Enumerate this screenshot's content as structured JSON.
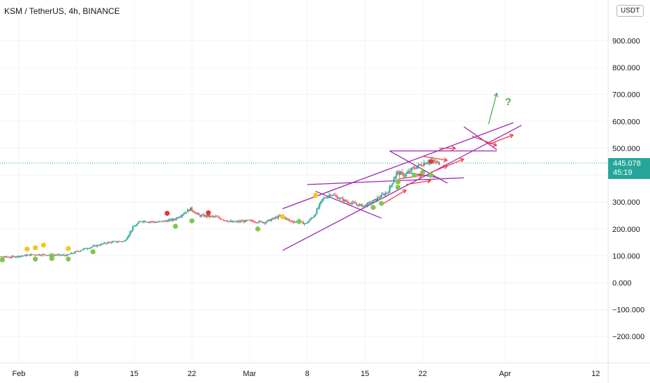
{
  "header": {
    "title": "KSM / TetherUS, 4h, BINANCE",
    "unit": "USDT"
  },
  "price_badge": {
    "price": "445.078",
    "countdown": "45:19"
  },
  "annotation": {
    "question": "?"
  },
  "colors": {
    "up": "#26a69a",
    "down": "#ef5350",
    "trendline": "#9c27b0",
    "arrow": "#f23645",
    "target_arrow": "#4caf50",
    "dot_yellow": "#f5c518",
    "dot_green": "#7cc84a",
    "dot_red": "#e53935"
  },
  "chart_data": {
    "type": "candlestick",
    "title": "KSM / TetherUS, 4h, BINANCE",
    "ylabel": "USDT",
    "ylim": [
      -300,
      1100
    ],
    "y_ticks": [
      -200,
      -100,
      0,
      100,
      200,
      300,
      400,
      500,
      600,
      700,
      800,
      900
    ],
    "y_tick_labels": [
      "−200.000",
      "−100.000",
      "0.000",
      "100.000",
      "200.000",
      "300.000",
      "400.000",
      "500.000",
      "600.000",
      "700.000",
      "800.000",
      "900.000"
    ],
    "x_range": [
      "2021-01-27",
      "2021-04-14"
    ],
    "x_ticks": [
      "2021-02-01",
      "2021-02-08",
      "2021-02-15",
      "2021-02-22",
      "2021-03-01",
      "2021-03-08",
      "2021-03-15",
      "2021-03-22",
      "2021-04-01",
      "2021-04-12"
    ],
    "x_tick_labels": [
      "Feb",
      "8",
      "15",
      "22",
      "Mar",
      "8",
      "15",
      "22",
      "Apr",
      "12"
    ],
    "last_price": 445.078,
    "grid": true,
    "price_path": [
      [
        "2021-01-27",
        100
      ],
      [
        "2021-01-31",
        95
      ],
      [
        "2021-02-03",
        105
      ],
      [
        "2021-02-07",
        102
      ],
      [
        "2021-02-09",
        125
      ],
      [
        "2021-02-12",
        150
      ],
      [
        "2021-02-14",
        155
      ],
      [
        "2021-02-15",
        205
      ],
      [
        "2021-02-16",
        230
      ],
      [
        "2021-02-18",
        225
      ],
      [
        "2021-02-20",
        235
      ],
      [
        "2021-02-22",
        275
      ],
      [
        "2021-02-23",
        250
      ],
      [
        "2021-02-25",
        245
      ],
      [
        "2021-02-27",
        225
      ],
      [
        "2021-03-01",
        230
      ],
      [
        "2021-03-03",
        225
      ],
      [
        "2021-03-05",
        250
      ],
      [
        "2021-03-06",
        230
      ],
      [
        "2021-03-08",
        220
      ],
      [
        "2021-03-09",
        250
      ],
      [
        "2021-03-10",
        310
      ],
      [
        "2021-03-11",
        330
      ],
      [
        "2021-03-13",
        300
      ],
      [
        "2021-03-15",
        285
      ],
      [
        "2021-03-16",
        300
      ],
      [
        "2021-03-18",
        340
      ],
      [
        "2021-03-19",
        410
      ],
      [
        "2021-03-20",
        400
      ],
      [
        "2021-03-21",
        425
      ],
      [
        "2021-03-22",
        440
      ],
      [
        "2021-03-23",
        455
      ],
      [
        "2021-03-24",
        445
      ]
    ],
    "markers": [
      {
        "date": "2021-01-30",
        "y": 85,
        "color": "green"
      },
      {
        "date": "2021-02-02",
        "y": 125,
        "color": "yellow"
      },
      {
        "date": "2021-02-03",
        "y": 130,
        "color": "yellow"
      },
      {
        "date": "2021-02-03",
        "y": 88,
        "color": "green"
      },
      {
        "date": "2021-02-04",
        "y": 140,
        "color": "yellow"
      },
      {
        "date": "2021-02-05",
        "y": 90,
        "color": "green"
      },
      {
        "date": "2021-02-05",
        "y": 100,
        "color": "green"
      },
      {
        "date": "2021-02-07",
        "y": 127,
        "color": "yellow"
      },
      {
        "date": "2021-02-07",
        "y": 88,
        "color": "green"
      },
      {
        "date": "2021-02-10",
        "y": 115,
        "color": "green"
      },
      {
        "date": "2021-02-19",
        "y": 258,
        "color": "red"
      },
      {
        "date": "2021-02-20",
        "y": 210,
        "color": "green"
      },
      {
        "date": "2021-02-22",
        "y": 230,
        "color": "green"
      },
      {
        "date": "2021-02-24",
        "y": 260,
        "color": "red"
      },
      {
        "date": "2021-03-02",
        "y": 200,
        "color": "green"
      },
      {
        "date": "2021-03-05",
        "y": 245,
        "color": "yellow"
      },
      {
        "date": "2021-03-07",
        "y": 228,
        "color": "green"
      },
      {
        "date": "2021-03-09",
        "y": 325,
        "color": "yellow"
      },
      {
        "date": "2021-03-16",
        "y": 280,
        "color": "green"
      },
      {
        "date": "2021-03-17",
        "y": 295,
        "color": "green"
      },
      {
        "date": "2021-03-19",
        "y": 355,
        "color": "green"
      },
      {
        "date": "2021-03-19",
        "y": 375,
        "color": "green"
      },
      {
        "date": "2021-03-21",
        "y": 400,
        "color": "green"
      },
      {
        "date": "2021-03-22",
        "y": 410,
        "color": "green"
      },
      {
        "date": "2021-03-23",
        "y": 450,
        "color": "red"
      },
      {
        "date": "2021-03-23",
        "y": 400,
        "color": "green"
      }
    ],
    "trendlines": [
      {
        "from": [
          "2021-03-05",
          120
        ],
        "to": [
          "2021-04-03",
          585
        ]
      },
      {
        "from": [
          "2021-03-05",
          275
        ],
        "to": [
          "2021-04-02",
          595
        ]
      },
      {
        "from": [
          "2021-03-08",
          365
        ],
        "to": [
          "2021-03-27",
          390
        ]
      },
      {
        "from": [
          "2021-03-09",
          340
        ],
        "to": [
          "2021-03-17",
          240
        ]
      },
      {
        "from": [
          "2021-03-18",
          490
        ],
        "to": [
          "2021-03-31",
          490
        ]
      },
      {
        "from": [
          "2021-03-18",
          490
        ],
        "to": [
          "2021-03-25",
          370
        ]
      },
      {
        "from": [
          "2021-03-20",
          410
        ],
        "to": [
          "2021-03-24",
          390
        ]
      },
      {
        "from": [
          "2021-03-27",
          580
        ],
        "to": [
          "2021-03-31",
          495
        ]
      }
    ],
    "arrows": [
      {
        "from": [
          "2021-03-17",
          290
        ],
        "to": [
          "2021-03-20",
          345
        ]
      },
      {
        "from": [
          "2021-03-19",
          385
        ],
        "to": [
          "2021-03-22",
          400
        ]
      },
      {
        "from": [
          "2021-03-20",
          365
        ],
        "to": [
          "2021-03-23",
          380
        ]
      },
      {
        "from": [
          "2021-03-22",
          470
        ],
        "to": [
          "2021-03-25",
          455
        ]
      },
      {
        "from": [
          "2021-03-23",
          410
        ],
        "to": [
          "2021-03-25",
          435
        ]
      },
      {
        "from": [
          "2021-03-24",
          500
        ],
        "to": [
          "2021-03-26",
          500
        ]
      },
      {
        "from": [
          "2021-03-25",
          435
        ],
        "to": [
          "2021-03-27",
          460
        ]
      },
      {
        "from": [
          "2021-03-28",
          545
        ],
        "to": [
          "2021-03-31",
          510
        ]
      },
      {
        "from": [
          "2021-03-30",
          515
        ],
        "to": [
          "2021-04-02",
          550
        ]
      }
    ],
    "target_arrow": {
      "from": [
        "2021-03-30",
        590
      ],
      "to": [
        "2021-03-31",
        705
      ]
    },
    "question_mark": [
      "2021-04-01",
      660
    ]
  }
}
